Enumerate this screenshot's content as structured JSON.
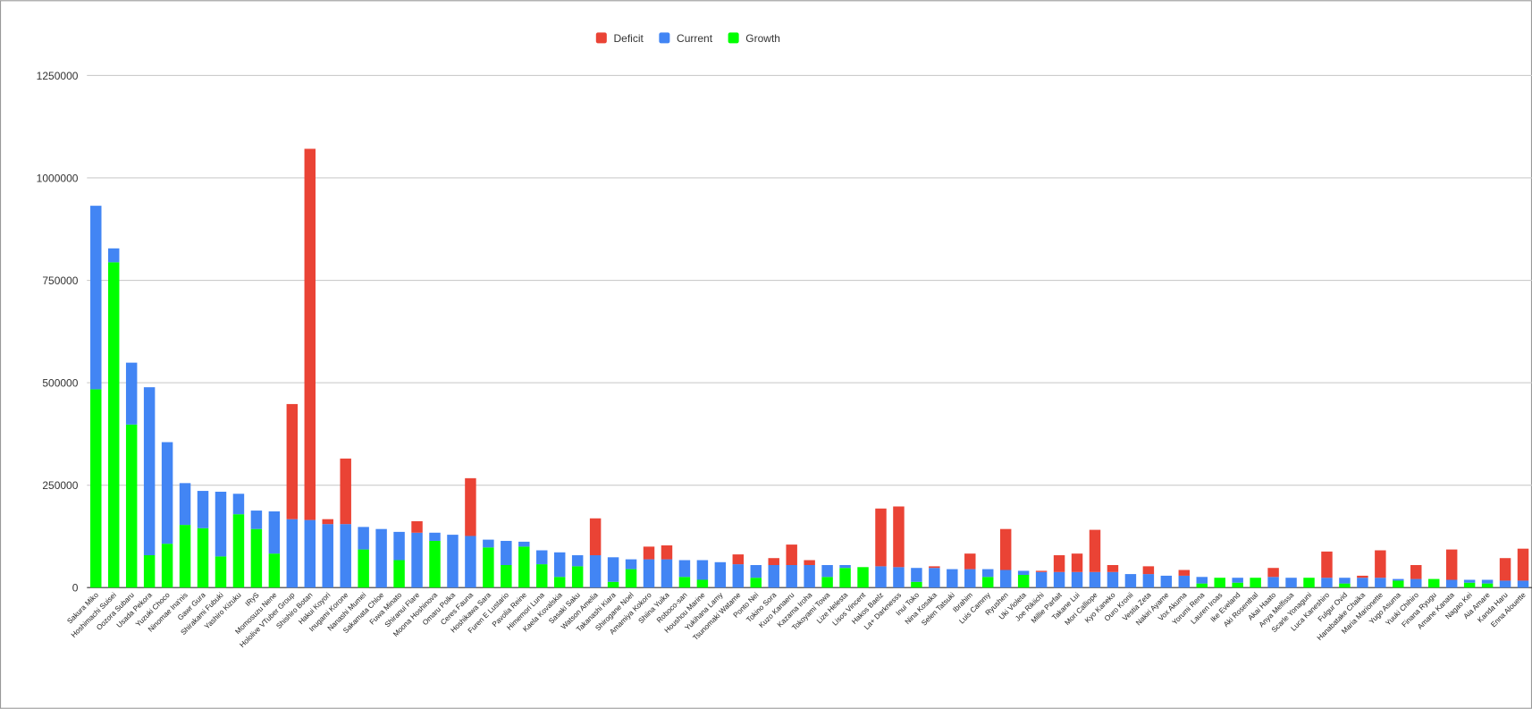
{
  "chart_data": {
    "type": "stacked_bar",
    "categories": [
      "Sakura Miko",
      "Hoshimachi Suisei",
      "Oozora Subaru",
      "Usada Pekora",
      "Yuzuki Choco",
      "Ninomae Ina'nis",
      "Gawr Gura",
      "Shirakami Fubuki",
      "Yashiro Kizuku",
      "IRyS",
      "Momosuzu Nene",
      "Hololive VTuber Group",
      "Shishiro Botan",
      "Hakui Koyori",
      "Inugami Korone",
      "Nanashi Mumei",
      "Sakamata Chloe",
      "Fuwa Minato",
      "Shiranui Flare",
      "Moona Hoshinova",
      "Omaru Polka",
      "Ceres Fauna",
      "Hoshikawa Sara",
      "Furen E Lustario",
      "Pavolia Reine",
      "Himemori Luna",
      "Kaela Kovalskia",
      "Sasaki Saku",
      "Watson Amelia",
      "Takanashi Kiara",
      "Shirogane Noel",
      "Amamiya Kokoro",
      "Shiina Yuika",
      "Roboco-san",
      "Houshou Marine",
      "Yukihana Lamy",
      "Tsunomaki Watame",
      "Ponto Nei",
      "Tokino Sora",
      "Kuzo Kanaeru",
      "Kazama Iroha",
      "Tokoyami Towa",
      "Lize Helesta",
      "Lisos Vincent",
      "Hakos Baelz",
      "La+ Darknesss",
      "Inui Toko",
      "Nina Kosaka",
      "Selen Tatsuki",
      "Ibrahim",
      "Luis Cammy",
      "Ryushen",
      "Uki Violeta",
      "Joe Rikiichi",
      "Millie Parfait",
      "Takane Lui",
      "Mori Calliope",
      "Kyo Kaneko",
      "Ouro Kronii",
      "Vestia Zeta",
      "Nakiri Ayame",
      "Vox Akuma",
      "Yorumi Rena",
      "Lauren Iroas",
      "Ike Eveland",
      "Aki Rosenthal",
      "Akai Haato",
      "Anya Melfissa",
      "Scarle Yonaguni",
      "Luca Kaneshiro",
      "Fulgur Ovid",
      "Hanabatake Chaika",
      "Maria Marionette",
      "Yugo Asuma",
      "Yuuki Chihiro",
      "Finana Ryugu",
      "Amane Kanata",
      "Nagao Kei",
      "Aia Amare",
      "Kanda Haru",
      "Enna Alouette"
    ],
    "series": [
      {
        "name": "Growth",
        "color": "#00ff00",
        "values": [
          484000,
          794000,
          398000,
          79000,
          107000,
          153000,
          145000,
          76000,
          179000,
          143000,
          83000,
          0,
          0,
          0,
          0,
          93000,
          0,
          67000,
          0,
          114000,
          0,
          0,
          98000,
          55000,
          100000,
          57000,
          26000,
          52000,
          0,
          14000,
          45000,
          0,
          0,
          26000,
          19000,
          0,
          0,
          24000,
          0,
          0,
          0,
          26000,
          48000,
          50000,
          0,
          0,
          14000,
          0,
          0,
          0,
          26000,
          0,
          31000,
          0,
          0,
          0,
          0,
          0,
          0,
          0,
          0,
          0,
          10000,
          24000,
          12000,
          24000,
          0,
          0,
          24000,
          0,
          10000,
          0,
          0,
          17000,
          0,
          21000,
          0,
          12000,
          10000,
          0,
          0
        ]
      },
      {
        "name": "Current",
        "color": "#4285f4",
        "values": [
          448000,
          34000,
          151000,
          410000,
          248000,
          102000,
          91000,
          158000,
          50000,
          45000,
          103000,
          167000,
          165000,
          155000,
          155000,
          55000,
          143000,
          69000,
          134000,
          20000,
          129000,
          126000,
          19000,
          59000,
          12000,
          34000,
          60000,
          27000,
          79000,
          60000,
          24000,
          69000,
          69000,
          41000,
          48000,
          62000,
          57000,
          31000,
          55000,
          55000,
          55000,
          29000,
          7000,
          0,
          52000,
          50000,
          34000,
          48000,
          45000,
          45000,
          19000,
          43000,
          10000,
          38000,
          38000,
          38000,
          38000,
          38000,
          33000,
          33000,
          29000,
          29000,
          16000,
          0,
          12000,
          0,
          26000,
          24000,
          0,
          24000,
          14000,
          24000,
          24000,
          4000,
          21000,
          0,
          19000,
          7000,
          9000,
          17000,
          17000
        ]
      },
      {
        "name": "Deficit",
        "color": "#ea4335",
        "values": [
          0,
          0,
          0,
          0,
          0,
          0,
          0,
          0,
          0,
          0,
          0,
          281000,
          906000,
          12000,
          160000,
          0,
          0,
          0,
          28000,
          0,
          0,
          141000,
          0,
          0,
          0,
          0,
          0,
          0,
          90000,
          0,
          0,
          31000,
          34000,
          0,
          0,
          0,
          24000,
          0,
          17000,
          50000,
          12000,
          0,
          0,
          0,
          141000,
          148000,
          0,
          4000,
          0,
          38000,
          0,
          100000,
          0,
          3000,
          41000,
          45000,
          103000,
          17000,
          0,
          19000,
          0,
          14000,
          0,
          0,
          0,
          0,
          22000,
          0,
          0,
          64000,
          0,
          5000,
          67000,
          0,
          34000,
          0,
          74000,
          0,
          0,
          55000,
          78000
        ]
      }
    ],
    "legend_order": [
      "Deficit",
      "Current",
      "Growth"
    ],
    "ylim": [
      0,
      1250000
    ],
    "yticks": [
      0,
      250000,
      500000,
      750000,
      1000000,
      1250000
    ],
    "grid": true
  }
}
